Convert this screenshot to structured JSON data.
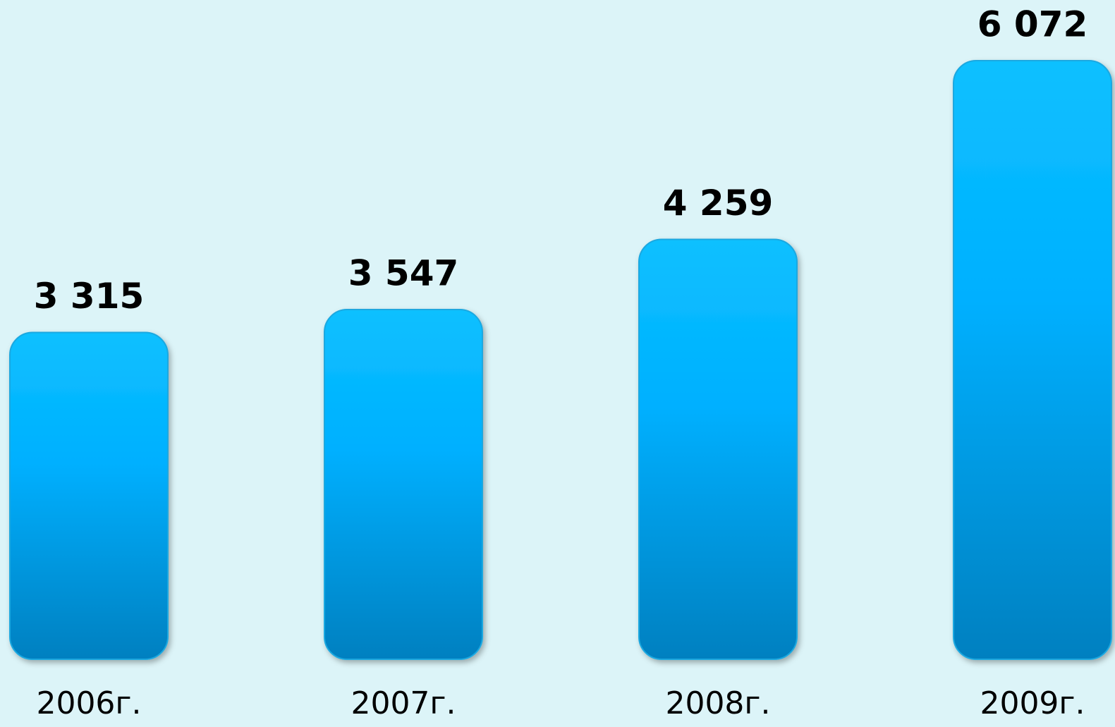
{
  "chart_data": {
    "type": "bar",
    "categories": [
      "2006г.",
      "2007г.",
      "2008г.",
      "2009г."
    ],
    "values": [
      3315,
      3547,
      4259,
      6072
    ],
    "value_labels": [
      "3 315",
      "3 547",
      "4 259",
      "6 072"
    ],
    "color": "#00b0ff"
  }
}
